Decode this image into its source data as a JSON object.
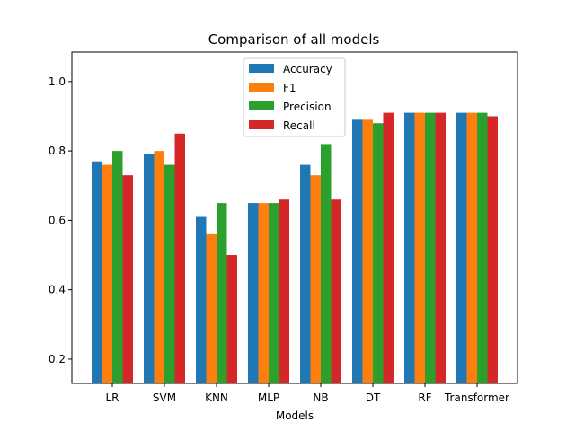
{
  "chart_data": {
    "type": "bar",
    "title": "Comparison of all models",
    "xlabel": "Models",
    "ylabel": "",
    "categories": [
      "LR",
      "SVM",
      "KNN",
      "MLP",
      "NB",
      "DT",
      "RF",
      "Transformer"
    ],
    "series": [
      {
        "name": "Accuracy",
        "color": "#1f77b4",
        "values": [
          0.77,
          0.79,
          0.61,
          0.65,
          0.76,
          0.89,
          0.91,
          0.91
        ]
      },
      {
        "name": "F1",
        "color": "#ff7f0e",
        "values": [
          0.76,
          0.8,
          0.56,
          0.65,
          0.73,
          0.89,
          0.91,
          0.91
        ]
      },
      {
        "name": "Precision",
        "color": "#2ca02c",
        "values": [
          0.8,
          0.76,
          0.65,
          0.65,
          0.82,
          0.88,
          0.91,
          0.91
        ]
      },
      {
        "name": "Recall",
        "color": "#d62728",
        "values": [
          0.73,
          0.85,
          0.5,
          0.66,
          0.66,
          0.91,
          0.91,
          0.9
        ]
      }
    ],
    "ylim": [
      0.13,
      1.085
    ],
    "yticks": [
      0.2,
      0.4,
      0.6,
      0.8,
      1.0
    ],
    "ytick_labels": [
      "0.2",
      "0.4",
      "0.6",
      "0.8",
      "1.0"
    ],
    "grid": false,
    "legend_position": "top-center"
  }
}
